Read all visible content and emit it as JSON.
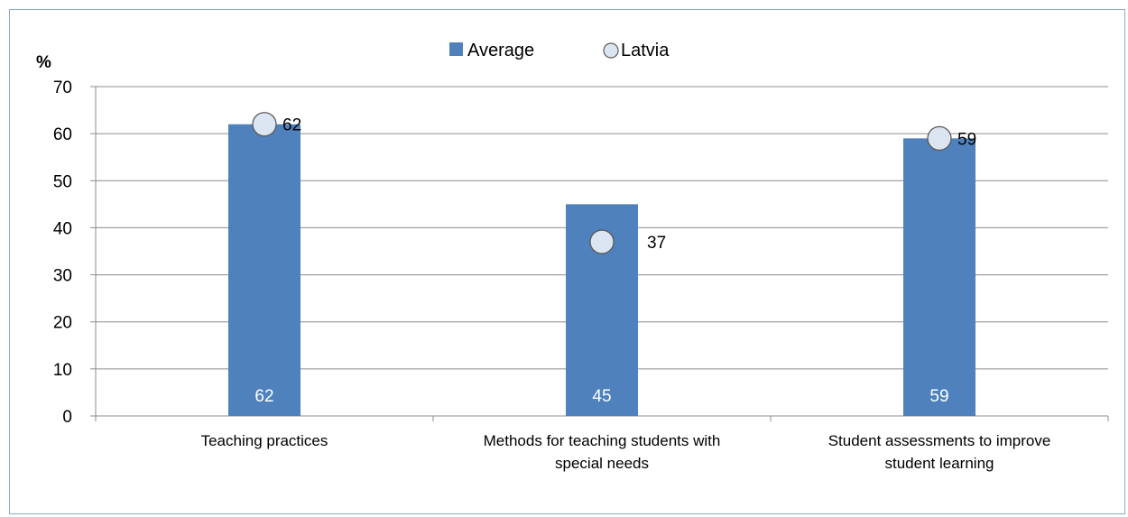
{
  "chart_data": {
    "type": "bar",
    "y_unit_label": "%",
    "categories": [
      [
        "Teaching practices"
      ],
      [
        "Methods for teaching students with",
        "special needs"
      ],
      [
        "Student assessments to improve",
        "student learning"
      ]
    ],
    "series": [
      {
        "name": "Average",
        "kind": "bar",
        "values": [
          62,
          45,
          59
        ],
        "color": "#4f81bd"
      },
      {
        "name": "Latvia",
        "kind": "marker",
        "values": [
          62,
          37,
          59
        ],
        "color": "#dce6f2",
        "stroke": "#5a5a5a"
      }
    ],
    "ylim": [
      0,
      70
    ],
    "yticks": [
      0,
      10,
      20,
      30,
      40,
      50,
      60,
      70
    ],
    "grid": true,
    "legend": "top-center",
    "legend_labels": [
      "Average",
      "Latvia"
    ]
  }
}
